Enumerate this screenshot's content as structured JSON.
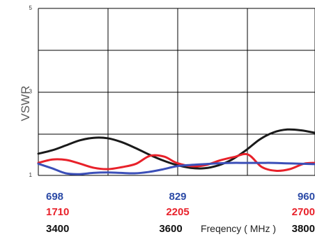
{
  "chart_data": {
    "type": "line",
    "ylabel": "VSWR",
    "xlabel": "Freqency ( MHz )",
    "ylim": [
      1,
      5
    ],
    "yticks": [
      "1",
      "3",
      "5"
    ],
    "grid": true,
    "x_axes": [
      {
        "color": "#2b4aa6",
        "ticks": [
          "698",
          "829",
          "960"
        ],
        "range": [
          698,
          960
        ]
      },
      {
        "color": "#e8212a",
        "ticks": [
          "1710",
          "2205",
          "2700"
        ],
        "range": [
          1710,
          2700
        ]
      },
      {
        "color": "#111111",
        "ticks": [
          "3400",
          "3600",
          "3800"
        ],
        "range": [
          3400,
          3800
        ]
      }
    ],
    "series": [
      {
        "color": "#1a1a1a",
        "x": [
          3400,
          3420,
          3440,
          3460,
          3480,
          3500,
          3520,
          3540,
          3560,
          3580,
          3600,
          3620,
          3640,
          3660,
          3680,
          3700,
          3720,
          3740,
          3760,
          3780,
          3800
        ],
        "values": [
          1.52,
          1.6,
          1.72,
          1.84,
          1.9,
          1.89,
          1.8,
          1.66,
          1.5,
          1.36,
          1.25,
          1.18,
          1.17,
          1.24,
          1.38,
          1.6,
          1.86,
          2.03,
          2.1,
          2.08,
          2.02
        ]
      },
      {
        "color": "#e8212a",
        "x": [
          1710,
          1760,
          1810,
          1860,
          1910,
          1960,
          2010,
          2060,
          2110,
          2160,
          2205,
          2260,
          2310,
          2360,
          2410,
          2460,
          2510,
          2560,
          2610,
          2660,
          2700
        ],
        "values": [
          1.3,
          1.38,
          1.37,
          1.28,
          1.18,
          1.15,
          1.2,
          1.28,
          1.47,
          1.45,
          1.3,
          1.22,
          1.25,
          1.36,
          1.44,
          1.5,
          1.2,
          1.11,
          1.15,
          1.28,
          1.3
        ]
      },
      {
        "color": "#3b4fb8",
        "x": [
          698,
          711,
          724,
          737,
          750,
          763,
          776,
          789,
          802,
          815,
          829,
          842,
          855,
          868,
          881,
          894,
          907,
          920,
          933,
          946,
          960
        ],
        "values": [
          1.28,
          1.17,
          1.05,
          1.03,
          1.06,
          1.07,
          1.06,
          1.05,
          1.08,
          1.14,
          1.22,
          1.25,
          1.27,
          1.29,
          1.3,
          1.3,
          1.3,
          1.3,
          1.29,
          1.28,
          1.27
        ]
      }
    ]
  }
}
